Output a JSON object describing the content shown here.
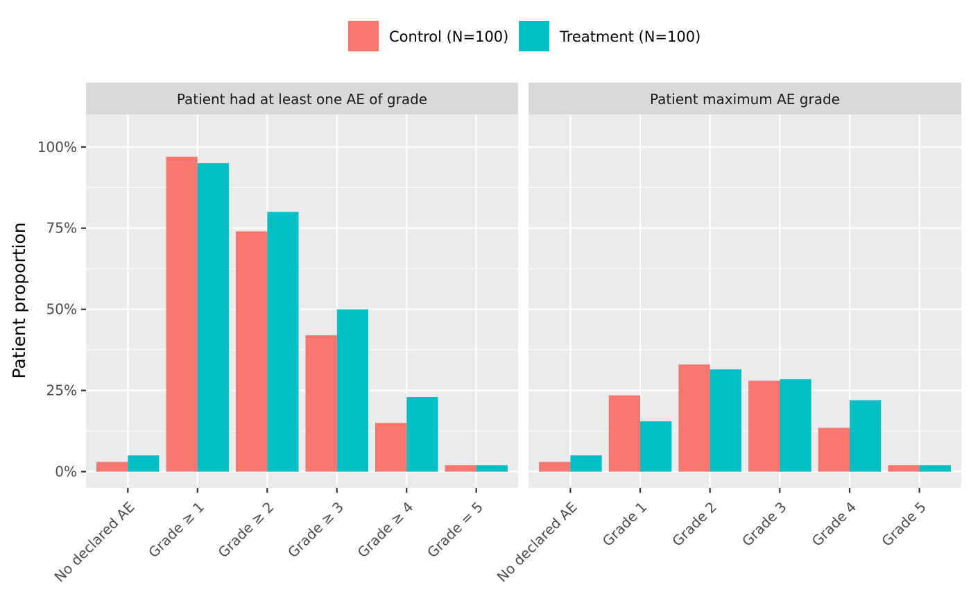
{
  "legend": {
    "position": "top",
    "items": [
      {
        "label": "Control (N=100)",
        "color": "#F8766D"
      },
      {
        "label": "Treatment (N=100)",
        "color": "#00BFC4"
      }
    ]
  },
  "chart_data": {
    "type": "bar",
    "ylabel": "Patient proportion",
    "xlabel": "",
    "ylim": [
      -0.05,
      1.1
    ],
    "yticks": [
      {
        "value": 0,
        "label": "0%"
      },
      {
        "value": 0.25,
        "label": "25%"
      },
      {
        "value": 0.5,
        "label": "50%"
      },
      {
        "value": 0.75,
        "label": "75%"
      },
      {
        "value": 1.0,
        "label": "100%"
      }
    ],
    "grid": true,
    "legend_position": "top",
    "panels": [
      {
        "title": "Patient had at least one AE of grade",
        "categories": [
          "No declared AE",
          "Grade ≥ 1",
          "Grade ≥ 2",
          "Grade ≥ 3",
          "Grade ≥ 4",
          "Grade = 5"
        ],
        "series": [
          {
            "name": "Control (N=100)",
            "color": "#F8766D",
            "values": [
              0.03,
              0.97,
              0.74,
              0.42,
              0.15,
              0.02
            ]
          },
          {
            "name": "Treatment (N=100)",
            "color": "#00BFC4",
            "values": [
              0.05,
              0.95,
              0.8,
              0.5,
              0.23,
              0.02
            ]
          }
        ]
      },
      {
        "title": "Patient maximum AE grade",
        "categories": [
          "No declared AE",
          "Grade 1",
          "Grade 2",
          "Grade 3",
          "Grade 4",
          "Grade 5"
        ],
        "series": [
          {
            "name": "Control (N=100)",
            "color": "#F8766D",
            "values": [
              0.03,
              0.235,
              0.33,
              0.28,
              0.135,
              0.02
            ]
          },
          {
            "name": "Treatment (N=100)",
            "color": "#00BFC4",
            "values": [
              0.05,
              0.155,
              0.315,
              0.285,
              0.22,
              0.02
            ]
          }
        ]
      }
    ]
  }
}
